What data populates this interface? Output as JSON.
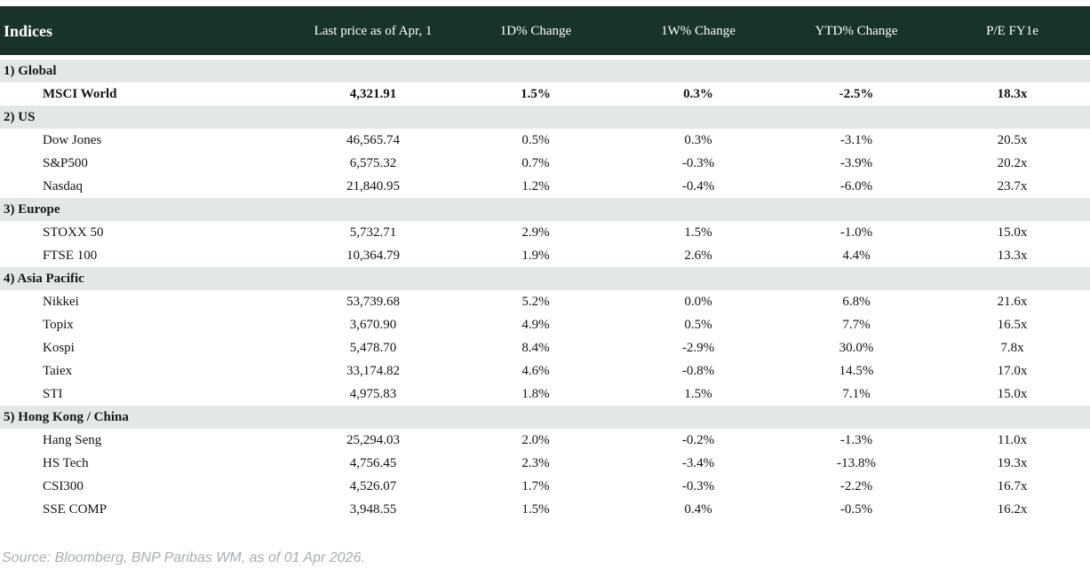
{
  "chart_data": {
    "type": "table",
    "title": "Indices",
    "columns": [
      "Indices",
      "Last price as of Apr, 1",
      "1D% Change",
      "1W% Change",
      "YTD% Change",
      "P/E FY1e"
    ],
    "sections": [
      {
        "label": "1) Global",
        "rows": [
          {
            "name": "MSCI World",
            "price": "4,321.91",
            "d1": "1.5%",
            "d1_dir": "pos",
            "w1": "0.3%",
            "w1_dir": "pos",
            "ytd": "-2.5%",
            "ytd_dir": "neg",
            "pe": "18.3x",
            "bold": true
          }
        ]
      },
      {
        "label": "2) US",
        "rows": [
          {
            "name": "Dow Jones",
            "price": "46,565.74",
            "d1": "0.5%",
            "d1_dir": "pos",
            "w1": "0.3%",
            "w1_dir": "pos",
            "ytd": "-3.1%",
            "ytd_dir": "neg",
            "pe": "20.5x",
            "bold": false
          },
          {
            "name": "S&P500",
            "price": "6,575.32",
            "d1": "0.7%",
            "d1_dir": "pos",
            "w1": "-0.3%",
            "w1_dir": "neg",
            "ytd": "-3.9%",
            "ytd_dir": "neg",
            "pe": "20.2x",
            "bold": false
          },
          {
            "name": "Nasdaq",
            "price": "21,840.95",
            "d1": "1.2%",
            "d1_dir": "pos",
            "w1": "-0.4%",
            "w1_dir": "neg",
            "ytd": "-6.0%",
            "ytd_dir": "neg",
            "pe": "23.7x",
            "bold": false
          }
        ]
      },
      {
        "label": "3) Europe",
        "rows": [
          {
            "name": "STOXX 50",
            "price": "5,732.71",
            "d1": "2.9%",
            "d1_dir": "pos",
            "w1": "1.5%",
            "w1_dir": "pos",
            "ytd": "-1.0%",
            "ytd_dir": "neg",
            "pe": "15.0x",
            "bold": false
          },
          {
            "name": "FTSE 100",
            "price": "10,364.79",
            "d1": "1.9%",
            "d1_dir": "pos",
            "w1": "2.6%",
            "w1_dir": "pos",
            "ytd": "4.4%",
            "ytd_dir": "pos",
            "pe": "13.3x",
            "bold": false
          }
        ]
      },
      {
        "label": "4) Asia Pacific",
        "rows": [
          {
            "name": "Nikkei",
            "price": "53,739.68",
            "d1": "5.2%",
            "d1_dir": "pos",
            "w1": "0.0%",
            "w1_dir": "neg",
            "ytd": "6.8%",
            "ytd_dir": "pos",
            "pe": "21.6x",
            "bold": false
          },
          {
            "name": "Topix",
            "price": "3,670.90",
            "d1": "4.9%",
            "d1_dir": "pos",
            "w1": "0.5%",
            "w1_dir": "pos",
            "ytd": "7.7%",
            "ytd_dir": "pos",
            "pe": "16.5x",
            "bold": false
          },
          {
            "name": "Kospi",
            "price": "5,478.70",
            "d1": "8.4%",
            "d1_dir": "pos",
            "w1": "-2.9%",
            "w1_dir": "neg",
            "ytd": "30.0%",
            "ytd_dir": "pos",
            "pe": "7.8x",
            "bold": false
          },
          {
            "name": "Taiex",
            "price": "33,174.82",
            "d1": "4.6%",
            "d1_dir": "pos",
            "w1": "-0.8%",
            "w1_dir": "neg",
            "ytd": "14.5%",
            "ytd_dir": "pos",
            "pe": "17.0x",
            "bold": false
          },
          {
            "name": "STI",
            "price": "4,975.83",
            "d1": "1.8%",
            "d1_dir": "pos",
            "w1": "1.5%",
            "w1_dir": "pos",
            "ytd": "7.1%",
            "ytd_dir": "pos",
            "pe": "15.0x",
            "bold": false
          }
        ]
      },
      {
        "label": "5) Hong Kong / China",
        "rows": [
          {
            "name": "Hang Seng",
            "price": "25,294.03",
            "d1": "2.0%",
            "d1_dir": "pos",
            "w1": "-0.2%",
            "w1_dir": "neg",
            "ytd": "-1.3%",
            "ytd_dir": "neg",
            "pe": "11.0x",
            "bold": false
          },
          {
            "name": "HS Tech",
            "price": "4,756.45",
            "d1": "2.3%",
            "d1_dir": "pos",
            "w1": "-3.4%",
            "w1_dir": "neg",
            "ytd": "-13.8%",
            "ytd_dir": "neg",
            "pe": "19.3x",
            "bold": false
          },
          {
            "name": "CSI300",
            "price": "4,526.07",
            "d1": "1.7%",
            "d1_dir": "pos",
            "w1": "-0.3%",
            "w1_dir": "neg",
            "ytd": "-2.2%",
            "ytd_dir": "neg",
            "pe": "16.7x",
            "bold": false
          },
          {
            "name": "SSE COMP",
            "price": "3,948.55",
            "d1": "1.5%",
            "d1_dir": "pos",
            "w1": "0.4%",
            "w1_dir": "pos",
            "ytd": "-0.5%",
            "ytd_dir": "neg",
            "pe": "16.2x",
            "bold": false
          }
        ]
      }
    ]
  },
  "footer": {
    "source_note": "Source: Bloomberg, BNP Paribas WM, as of 01 Apr 2026."
  },
  "colors": {
    "header_bg": "#1a322c",
    "section_bg": "#e3e8e4",
    "positive": "#078a20",
    "negative": "#bd1421",
    "footer_text": "#a7aeb2"
  }
}
